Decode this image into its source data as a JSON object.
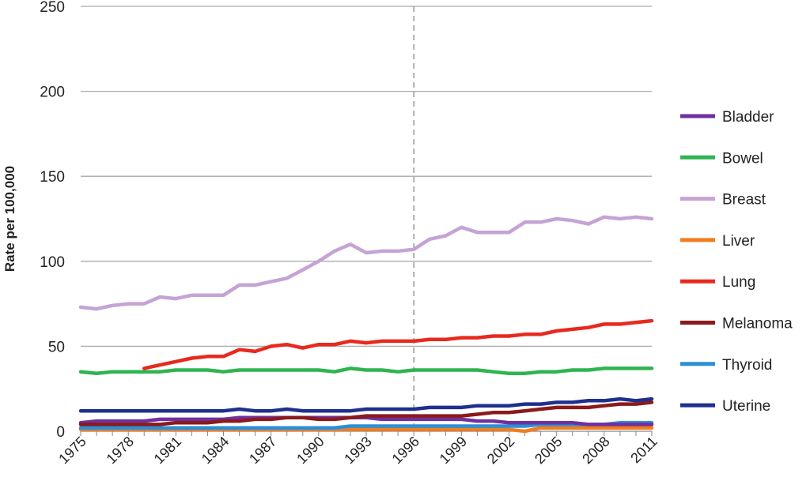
{
  "chart_data": {
    "type": "line",
    "title": "",
    "xlabel": "",
    "ylabel": "Rate per 100,000",
    "ylim": [
      0,
      250
    ],
    "yticks": [
      0,
      50,
      100,
      150,
      200,
      250
    ],
    "xlim": [
      1975,
      2011
    ],
    "xtick_labels": [
      "1975",
      "1978",
      "1981",
      "1984",
      "1987",
      "1990",
      "1993",
      "1996",
      "1999",
      "2002",
      "2005",
      "2008",
      "2011"
    ],
    "grid": "horizontal",
    "reference_line_x": 1996,
    "legend_position": "right",
    "x_start": 1975,
    "series": [
      {
        "name": "Bladder",
        "color": "#7030a0",
        "start": 1975,
        "values": [
          5,
          6,
          6,
          6,
          6,
          7,
          7,
          7,
          7,
          7,
          8,
          8,
          8,
          8,
          8,
          8,
          8,
          8,
          8,
          7,
          7,
          7,
          7,
          7,
          7,
          6,
          6,
          5,
          5,
          5,
          5,
          5,
          4,
          4,
          4,
          4,
          4
        ]
      },
      {
        "name": "Bowel",
        "color": "#2fb450",
        "start": 1975,
        "values": [
          35,
          34,
          35,
          35,
          35,
          35,
          36,
          36,
          36,
          35,
          36,
          36,
          36,
          36,
          36,
          36,
          35,
          37,
          36,
          36,
          35,
          36,
          36,
          36,
          36,
          36,
          35,
          34,
          34,
          35,
          35,
          36,
          36,
          37,
          37,
          37,
          37
        ]
      },
      {
        "name": "Breast",
        "color": "#c5a3d5",
        "start": 1975,
        "values": [
          73,
          72,
          74,
          75,
          75,
          79,
          78,
          80,
          80,
          80,
          86,
          86,
          88,
          90,
          95,
          100,
          106,
          110,
          105,
          106,
          106,
          107,
          113,
          115,
          120,
          117,
          117,
          117,
          123,
          123,
          125,
          124,
          122,
          126,
          125,
          126,
          125
        ]
      },
      {
        "name": "Liver",
        "color": "#f07d1f",
        "start": 1975,
        "values": [
          1,
          1,
          1,
          1,
          1,
          1,
          1,
          1,
          1,
          1,
          1,
          1,
          1,
          1,
          1,
          1,
          1,
          1,
          1,
          1,
          1,
          1,
          1,
          1,
          1,
          1,
          1,
          1,
          0,
          2,
          2,
          2,
          2,
          2,
          2,
          2,
          2
        ]
      },
      {
        "name": "Lung",
        "color": "#e8291e",
        "start": 1979,
        "values": [
          37,
          39,
          41,
          43,
          44,
          44,
          48,
          47,
          50,
          51,
          49,
          51,
          51,
          53,
          52,
          53,
          53,
          53,
          54,
          54,
          55,
          55,
          56,
          56,
          57,
          57,
          59,
          60,
          61,
          63,
          63,
          64,
          65
        ]
      },
      {
        "name": "Melanoma",
        "color": "#8b1a1a",
        "start": 1975,
        "values": [
          4,
          4,
          4,
          4,
          4,
          4,
          5,
          5,
          5,
          6,
          6,
          7,
          7,
          8,
          8,
          7,
          7,
          8,
          9,
          9,
          9,
          9,
          9,
          9,
          9,
          10,
          11,
          11,
          12,
          13,
          14,
          14,
          14,
          15,
          16,
          16,
          17
        ]
      },
      {
        "name": "Thyroid",
        "color": "#2c8fd6",
        "start": 1975,
        "values": [
          2,
          2,
          2,
          2,
          2,
          2,
          2,
          2,
          2,
          2,
          2,
          2,
          2,
          2,
          2,
          2,
          2,
          3,
          3,
          3,
          3,
          3,
          3,
          3,
          3,
          3,
          3,
          3,
          3,
          4,
          4,
          4,
          4,
          4,
          5,
          5,
          5
        ]
      },
      {
        "name": "Uterine",
        "color": "#1f2f8f",
        "start": 1975,
        "values": [
          12,
          12,
          12,
          12,
          12,
          12,
          12,
          12,
          12,
          12,
          13,
          12,
          12,
          13,
          12,
          12,
          12,
          12,
          13,
          13,
          13,
          13,
          14,
          14,
          14,
          15,
          15,
          15,
          16,
          16,
          17,
          17,
          18,
          18,
          19,
          18,
          19
        ]
      }
    ]
  }
}
